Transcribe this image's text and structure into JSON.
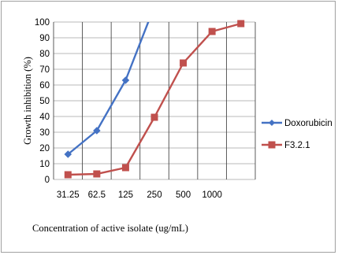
{
  "chart_data": {
    "type": "line",
    "title": "",
    "xlabel": "Concentration of active  isolate  (ug/mL)",
    "ylabel": "Growth inhibition (%)",
    "categories": [
      "31.25",
      "62.5",
      "125",
      "250",
      "500",
      "1000",
      ""
    ],
    "ylim": [
      0,
      100
    ],
    "yticks": [
      0,
      10,
      20,
      30,
      40,
      50,
      60,
      70,
      80,
      90,
      100
    ],
    "grid": "vertical and horizontal",
    "legend_position": "right",
    "series": [
      {
        "name": "Doxorubicin",
        "color": "#4472C4",
        "marker": "diamond",
        "values": [
          16,
          31,
          63,
          110,
          null,
          null,
          null
        ]
      },
      {
        "name": "F3.2.1",
        "color": "#C0504D",
        "marker": "square",
        "values": [
          3,
          3.5,
          7.5,
          39.5,
          74,
          94,
          99
        ]
      }
    ]
  }
}
